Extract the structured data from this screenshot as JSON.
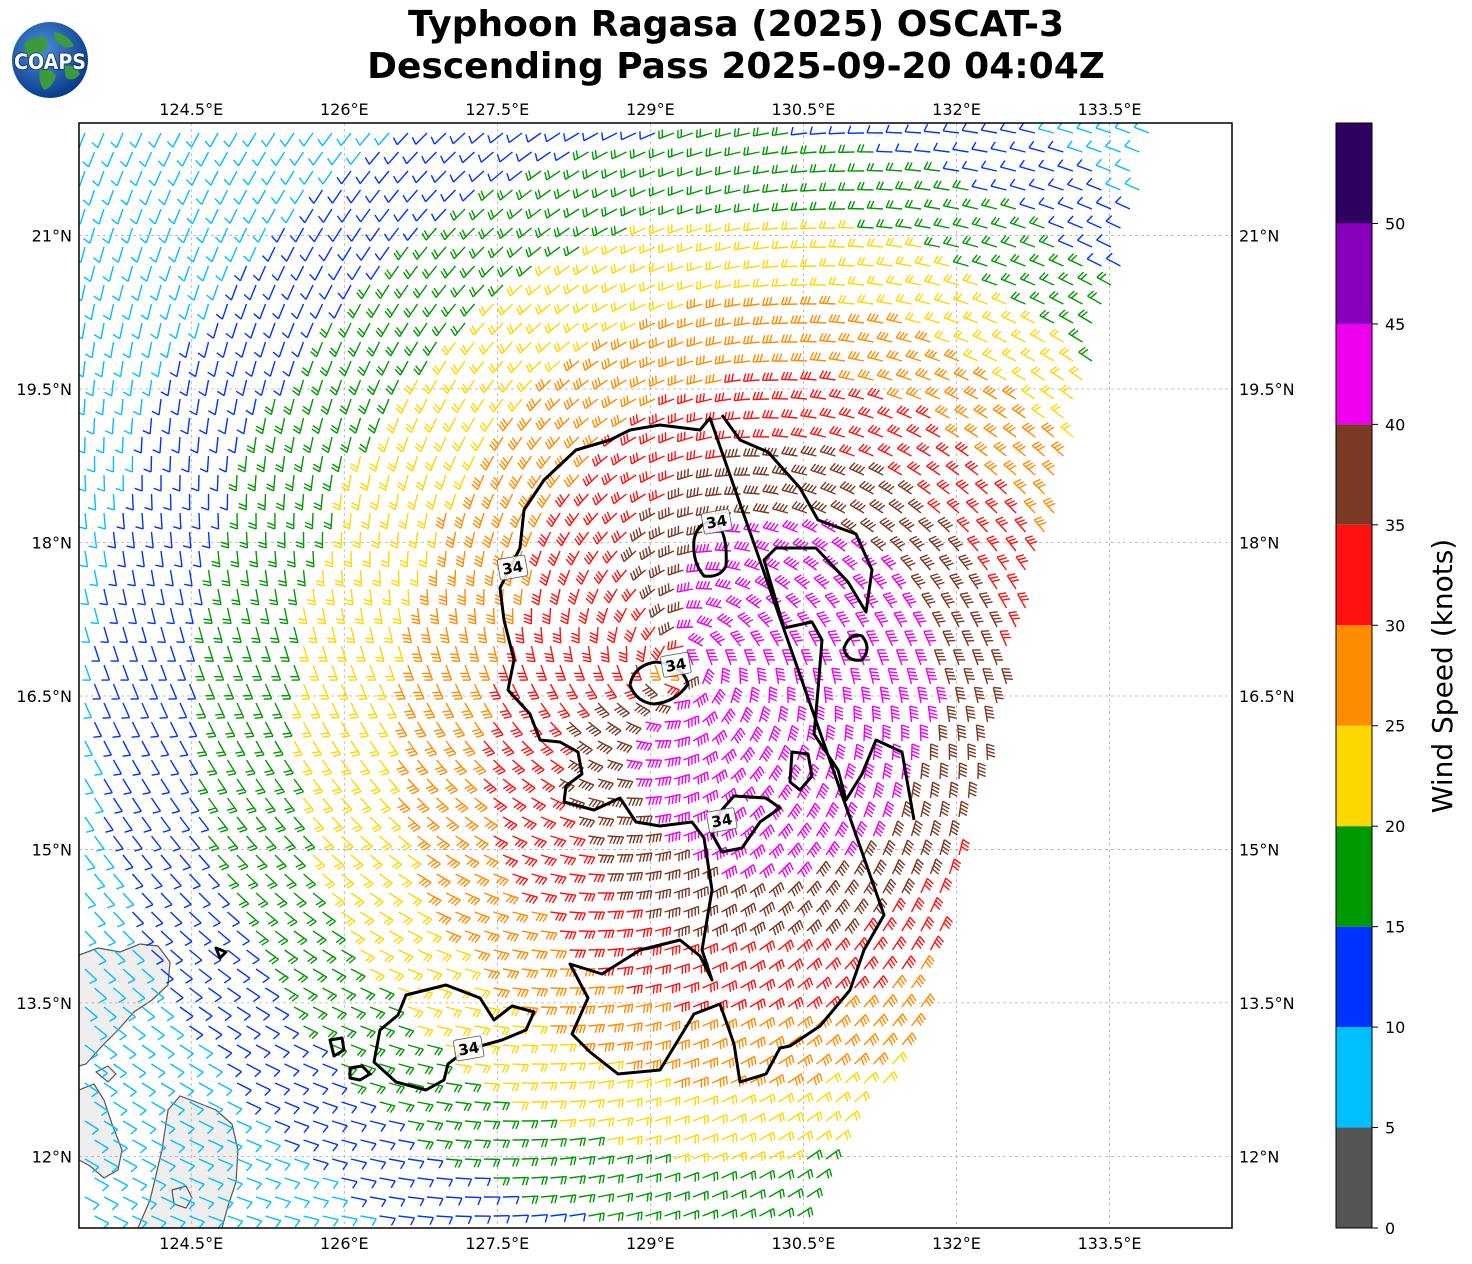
{
  "title": {
    "line1": "Typhoon Ragasa (2025) OSCAT-3",
    "line2": "Descending Pass 2025-09-20 04:04Z"
  },
  "logo": {
    "text": "COAPS"
  },
  "map": {
    "lon_range": [
      123.4,
      134.7
    ],
    "lat_range": [
      11.3,
      22.1
    ],
    "lon_ticks": [
      124.5,
      126,
      127.5,
      129,
      130.5,
      132,
      133.5
    ],
    "lon_tick_labels": [
      "124.5°E",
      "126°E",
      "127.5°E",
      "129°E",
      "130.5°E",
      "132°E",
      "133.5°E"
    ],
    "lat_ticks": [
      12,
      13.5,
      15,
      16.5,
      18,
      19.5,
      21
    ],
    "lat_tick_labels": [
      "12°N",
      "13.5°N",
      "15°N",
      "16.5°N",
      "18°N",
      "19.5°N",
      "21°N"
    ],
    "gridlines": true,
    "storm_center": {
      "lon": 129.3,
      "lat": 16.8
    },
    "contour_value_label": "34",
    "contour_label_positions": [
      {
        "lon": 129.65,
        "lat": 18.2
      },
      {
        "lon": 127.65,
        "lat": 17.75
      },
      {
        "lon": 129.25,
        "lat": 16.8
      },
      {
        "lon": 129.7,
        "lat": 15.28
      },
      {
        "lon": 127.22,
        "lat": 13.05
      }
    ]
  },
  "colorbar": {
    "title": "Wind Speed (knots)",
    "ticks": [
      0,
      5,
      10,
      15,
      20,
      25,
      30,
      35,
      40,
      45,
      50
    ],
    "max": 55,
    "colors": [
      "#555555",
      "#00bfff",
      "#0033ff",
      "#009900",
      "#ffd700",
      "#ff8c00",
      "#ff1111",
      "#7b3a24",
      "#ee00ee",
      "#8800bb",
      "#2e0060"
    ]
  },
  "colors": {
    "contour": "#000000",
    "land_fill": "#eeeeee",
    "coast": "#555555",
    "grid": "#b0b0b0"
  }
}
